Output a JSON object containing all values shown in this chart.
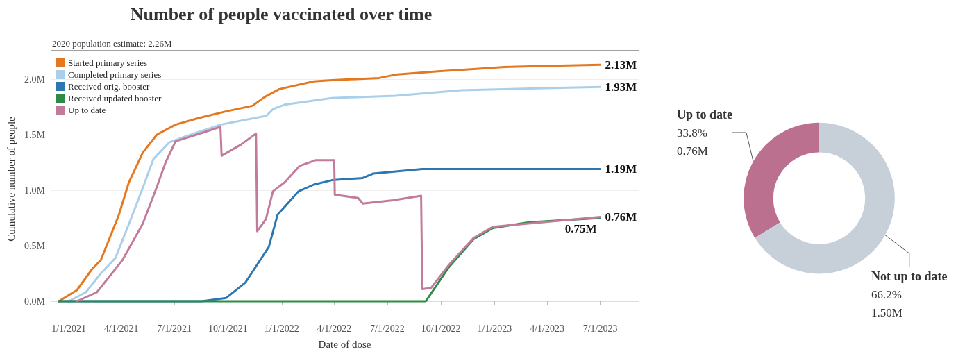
{
  "chart_data": [
    {
      "type": "line",
      "title": "Number of people vaccinated over time",
      "xlabel": "Date of dose",
      "ylabel": "Cumulative number of people",
      "xlim": [
        "2020-12-01",
        "2023-09-05"
      ],
      "ylim": [
        -0.15,
        2.35
      ],
      "xticks": [
        {
          "value": "2021-01-01",
          "label": "1/1/2021"
        },
        {
          "value": "2021-04-01",
          "label": "4/1/2021"
        },
        {
          "value": "2021-07-01",
          "label": "7/1/2021"
        },
        {
          "value": "2021-10-01",
          "label": "10/1/2021"
        },
        {
          "value": "2022-01-01",
          "label": "1/1/2022"
        },
        {
          "value": "2022-04-01",
          "label": "4/1/2022"
        },
        {
          "value": "2022-07-01",
          "label": "7/1/2022"
        },
        {
          "value": "2022-10-01",
          "label": "10/1/2022"
        },
        {
          "value": "2023-01-01",
          "label": "1/1/2023"
        },
        {
          "value": "2023-04-01",
          "label": "4/1/2023"
        },
        {
          "value": "2023-07-01",
          "label": "7/1/2023"
        }
      ],
      "yticks": [
        {
          "value": 0,
          "label": "0.0M"
        },
        {
          "value": 0.5,
          "label": "0.5M"
        },
        {
          "value": 1,
          "label": "1.0M"
        },
        {
          "value": 1.5,
          "label": "1.5M"
        },
        {
          "value": 2,
          "label": "2.0M"
        }
      ],
      "grid": "y",
      "legend": "top left",
      "marker": "none",
      "line_style": "solid",
      "ref_lines": [
        {
          "axis": "y",
          "value": 2.26,
          "label": "2020 population estimate: 2.26M",
          "color": "#a0a0a0"
        }
      ],
      "series": [
        {
          "name": "Started primary series",
          "color": "#e5781f",
          "x": [
            "2020-12-15",
            "2021-01-15",
            "2021-02-10",
            "2021-02-25",
            "2021-03-28",
            "2021-04-14",
            "2021-05-08",
            "2021-06-01",
            "2021-07-03",
            "2021-08-12",
            "2021-09-28",
            "2021-11-12",
            "2021-12-03",
            "2021-12-28",
            "2022-02-25",
            "2022-03-28",
            "2022-06-17",
            "2022-07-15",
            "2022-09-26",
            "2022-11-26",
            "2023-01-18",
            "2023-07-01"
          ],
          "values": [
            0,
            0.1,
            0.29,
            0.37,
            0.78,
            1.07,
            1.34,
            1.5,
            1.59,
            1.65,
            1.71,
            1.76,
            1.84,
            1.91,
            1.98,
            1.99,
            2.01,
            2.04,
            2.07,
            2.09,
            2.11,
            2.13
          ],
          "value_labels": [
            null,
            null,
            null,
            null,
            null,
            null,
            null,
            null,
            null,
            null,
            null,
            null,
            null,
            null,
            null,
            null,
            null,
            null,
            null,
            null,
            null,
            "2.13M"
          ]
        },
        {
          "name": "Completed primary series",
          "color": "#a9cfea",
          "x": [
            "2021-01-01",
            "2021-01-30",
            "2021-02-25",
            "2021-03-22",
            "2021-04-16",
            "2021-05-10",
            "2021-05-26",
            "2021-06-22",
            "2021-07-18",
            "2021-09-18",
            "2021-12-06",
            "2021-12-17",
            "2022-01-06",
            "2022-03-28",
            "2022-07-15",
            "2022-11-05",
            "2023-01-18",
            "2023-07-01"
          ],
          "values": [
            0,
            0.08,
            0.25,
            0.39,
            0.72,
            1.05,
            1.28,
            1.43,
            1.48,
            1.59,
            1.67,
            1.73,
            1.77,
            1.83,
            1.85,
            1.9,
            1.91,
            1.93
          ],
          "value_labels": [
            null,
            null,
            null,
            null,
            null,
            null,
            null,
            null,
            null,
            null,
            null,
            null,
            null,
            null,
            null,
            null,
            null,
            "1.93M"
          ]
        },
        {
          "name": "Received orig. booster",
          "color": "#2c77b2",
          "x": [
            "2020-12-15",
            "2021-08-17",
            "2021-09-28",
            "2021-10-31",
            "2021-12-10",
            "2021-12-25",
            "2022-01-30",
            "2022-02-25",
            "2022-03-28",
            "2022-05-20",
            "2022-06-07",
            "2022-08-30",
            "2023-07-01"
          ],
          "values": [
            0,
            0,
            0.03,
            0.17,
            0.49,
            0.78,
            0.99,
            1.05,
            1.09,
            1.11,
            1.15,
            1.19,
            1.19
          ],
          "value_labels": [
            null,
            null,
            null,
            null,
            null,
            null,
            null,
            null,
            null,
            null,
            null,
            null,
            "1.19M"
          ]
        },
        {
          "name": "Received updated booster",
          "color": "#2e8b47",
          "x": [
            "2020-12-15",
            "2022-09-05",
            "2022-10-15",
            "2022-11-26",
            "2022-12-29",
            "2023-02-27",
            "2023-07-01"
          ],
          "values": [
            0,
            0,
            0.31,
            0.56,
            0.66,
            0.71,
            0.75
          ],
          "value_labels": [
            null,
            null,
            null,
            null,
            null,
            null,
            "0.75M"
          ]
        },
        {
          "name": "Up to date",
          "color": "#c27b9b",
          "x": [
            "2021-01-15",
            "2021-02-18",
            "2021-04-03",
            "2021-05-08",
            "2021-06-01",
            "2021-06-16",
            "2021-07-03",
            "2021-08-20",
            "2021-09-18",
            "2021-09-20",
            "2021-10-23",
            "2021-11-18",
            "2021-11-20",
            "2021-12-05",
            "2021-12-17",
            "2022-01-06",
            "2022-02-01",
            "2022-02-28",
            "2022-04-01",
            "2022-04-02",
            "2022-05-12",
            "2022-05-20",
            "2022-07-11",
            "2022-08-28",
            "2022-08-30",
            "2022-09-14",
            "2022-10-15",
            "2022-11-26",
            "2022-12-29",
            "2023-07-01"
          ],
          "values": [
            0,
            0.08,
            0.37,
            0.7,
            1.03,
            1.25,
            1.44,
            1.52,
            1.57,
            1.31,
            1.41,
            1.51,
            0.63,
            0.74,
            0.99,
            1.07,
            1.22,
            1.27,
            1.27,
            0.96,
            0.93,
            0.88,
            0.91,
            0.95,
            0.11,
            0.12,
            0.33,
            0.57,
            0.67,
            0.76
          ],
          "value_labels": [
            null,
            null,
            null,
            null,
            null,
            null,
            null,
            null,
            null,
            null,
            null,
            null,
            null,
            null,
            null,
            null,
            null,
            null,
            null,
            null,
            null,
            null,
            null,
            null,
            null,
            null,
            null,
            null,
            null,
            "0.76M"
          ]
        }
      ]
    },
    {
      "type": "donut",
      "categories": [
        "Up to date",
        "Not up to date"
      ],
      "values": [
        33.8,
        66.2
      ],
      "colors": [
        "#bc7090",
        "#c7cfd9"
      ],
      "value_labels": [
        "33.8%\n0.76M",
        "66.2%\n1.50M"
      ]
    }
  ]
}
